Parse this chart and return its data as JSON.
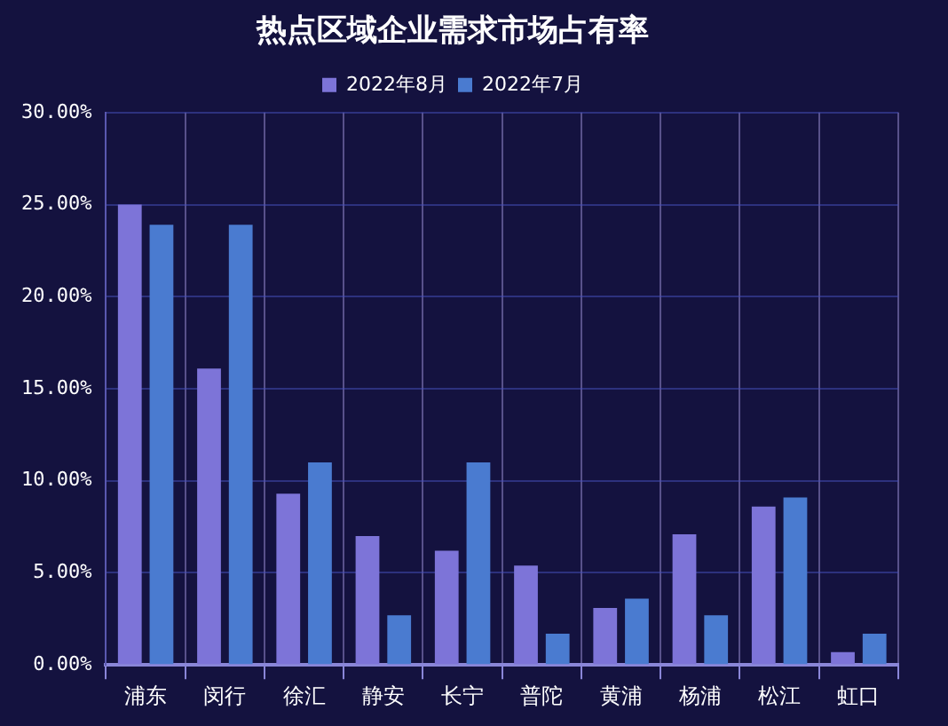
{
  "chart_data": {
    "type": "bar",
    "title": "热点区域企业需求市场占有率",
    "categories": [
      "浦东",
      "闵行",
      "徐汇",
      "静安",
      "长宁",
      "普陀",
      "黄浦",
      "杨浦",
      "松江",
      "虹口"
    ],
    "series": [
      {
        "name": "2022年8月",
        "color": "#7d74d8",
        "values": [
          25.0,
          16.1,
          9.3,
          7.0,
          6.2,
          5.4,
          3.1,
          7.1,
          8.6,
          0.7
        ]
      },
      {
        "name": "2022年7月",
        "color": "#4a7bd0",
        "values": [
          23.9,
          23.9,
          11.0,
          2.7,
          11.0,
          1.7,
          3.6,
          2.7,
          9.1,
          1.7
        ]
      }
    ],
    "ylim": [
      0,
      30
    ],
    "yticks": [
      {
        "value": 0,
        "label": "0.00%"
      },
      {
        "value": 5,
        "label": "5.00%"
      },
      {
        "value": 10,
        "label": "10.00%"
      },
      {
        "value": 15,
        "label": "15.00%"
      },
      {
        "value": 20,
        "label": "20.00%"
      },
      {
        "value": 25,
        "label": "25.00%"
      },
      {
        "value": 30,
        "label": "30.00%"
      }
    ],
    "grid": true,
    "legend": "top"
  }
}
